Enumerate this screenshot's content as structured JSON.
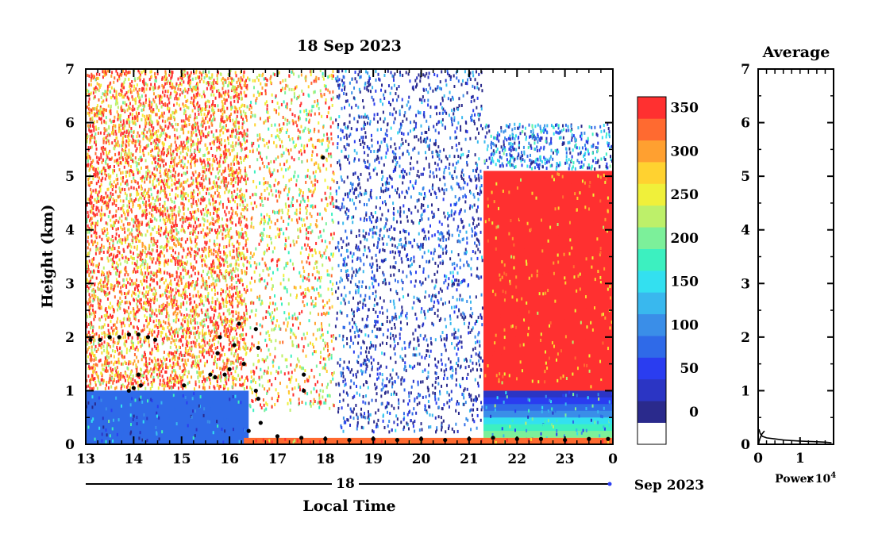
{
  "chart_data": [
    {
      "type": "heatmap",
      "title": "18 Sep 2023",
      "ylabel": "Height (km)",
      "xlabel": "Local Time",
      "date_axis": {
        "day_label": "18",
        "month_label": "Sep 2023"
      },
      "x_ticks": [
        "13",
        "14",
        "15",
        "16",
        "17",
        "18",
        "19",
        "20",
        "21",
        "22",
        "23",
        "0"
      ],
      "xlim": [
        13,
        24
      ],
      "y_ticks": [
        "0",
        "1",
        "2",
        "3",
        "4",
        "5",
        "6",
        "7"
      ],
      "ylim": [
        0,
        7
      ],
      "colorbar": {
        "tick_labels": [
          "0",
          "50",
          "100",
          "150",
          "200",
          "250",
          "300",
          "350"
        ],
        "range": [
          0,
          380
        ],
        "levels": [
          "#ffffff",
          "#2a2a8c",
          "#2b35c4",
          "#2a3df0",
          "#2f6ae8",
          "#3a8ee8",
          "#39b8ee",
          "#33e0f0",
          "#3cf0c0",
          "#7cf09a",
          "#bdf06a",
          "#f0f03a",
          "#ffd230",
          "#ffa030",
          "#ff6a30",
          "#ff3030"
        ]
      },
      "regions": [
        {
          "x": [
            13.0,
            16.4
          ],
          "y": [
            1.0,
            7.0
          ],
          "value": 340,
          "pattern": "dense speckle"
        },
        {
          "x": [
            13.0,
            16.4
          ],
          "y": [
            0.0,
            1.0
          ],
          "value": 110,
          "pattern": "dense"
        },
        {
          "x": [
            16.4,
            18.2
          ],
          "y": [
            0.6,
            7.0
          ],
          "value": 300,
          "pattern": "sparse speckle"
        },
        {
          "x": [
            18.2,
            21.3
          ],
          "y": [
            0.2,
            7.0
          ],
          "value": 60,
          "pattern": "sparse speckle"
        },
        {
          "x": [
            21.3,
            24.0
          ],
          "y": [
            1.0,
            5.1
          ],
          "value": 370,
          "pattern": "solid"
        },
        {
          "x": [
            21.3,
            24.0
          ],
          "y": [
            5.1,
            6.0
          ],
          "value": 110,
          "pattern": "speckle"
        },
        {
          "x": [
            21.3,
            24.0
          ],
          "y": [
            0.0,
            1.0
          ],
          "value": 150,
          "pattern": "gradient"
        },
        {
          "x": [
            16.3,
            24.0
          ],
          "y": [
            0.0,
            0.12
          ],
          "value": 360,
          "pattern": "solid"
        }
      ],
      "cloud_base_points": [
        [
          13.1,
          1.95
        ],
        [
          13.3,
          1.95
        ],
        [
          13.5,
          2.0
        ],
        [
          13.7,
          2.0
        ],
        [
          13.9,
          2.05
        ],
        [
          14.1,
          2.05
        ],
        [
          14.3,
          2.0
        ],
        [
          14.45,
          1.95
        ],
        [
          13.9,
          1.0
        ],
        [
          14.0,
          1.05
        ],
        [
          14.1,
          1.3
        ],
        [
          14.15,
          1.1
        ],
        [
          15.05,
          1.1
        ],
        [
          15.6,
          1.3
        ],
        [
          15.7,
          1.25
        ],
        [
          15.75,
          1.7
        ],
        [
          15.8,
          2.0
        ],
        [
          15.9,
          1.3
        ],
        [
          16.0,
          1.4
        ],
        [
          16.1,
          1.85
        ],
        [
          16.2,
          2.25
        ],
        [
          16.3,
          1.5
        ],
        [
          16.55,
          2.15
        ],
        [
          16.6,
          1.8
        ],
        [
          16.55,
          1.0
        ],
        [
          16.6,
          0.85
        ],
        [
          16.65,
          0.4
        ],
        [
          17.55,
          1.0
        ],
        [
          17.55,
          1.3
        ],
        [
          17.95,
          5.35
        ],
        [
          16.4,
          0.25
        ],
        [
          17.0,
          0.15
        ],
        [
          17.5,
          0.12
        ],
        [
          18.0,
          0.1
        ],
        [
          18.5,
          0.08
        ],
        [
          19.0,
          0.1
        ],
        [
          19.5,
          0.08
        ],
        [
          20.0,
          0.1
        ],
        [
          20.5,
          0.08
        ],
        [
          21.0,
          0.1
        ],
        [
          21.5,
          0.12
        ],
        [
          22.0,
          0.1
        ],
        [
          22.5,
          0.1
        ],
        [
          23.0,
          0.08
        ],
        [
          23.5,
          0.1
        ],
        [
          23.9,
          0.1
        ]
      ]
    },
    {
      "type": "line",
      "title": "Average",
      "xlabel": "Power",
      "x_exponent": "×10",
      "x_exponent_power": "4",
      "x_ticks": [
        "0",
        "1"
      ],
      "xlim": [
        0,
        1.8
      ],
      "y_ticks": [
        "0",
        "1",
        "2",
        "3",
        "4",
        "5",
        "6",
        "7"
      ],
      "ylim": [
        0,
        7
      ],
      "series": [
        {
          "x": [
            0.15,
            0.08,
            0.05,
            0.04,
            0.03,
            0.03,
            0.02,
            0.02,
            0.02,
            0.02,
            0.02
          ],
          "y": [
            0.25,
            0.18,
            0.12,
            0.1,
            0.08,
            0.07,
            0.06,
            0.05,
            0.04,
            0.03,
            0.02
          ]
        },
        {
          "x": [
            0.02,
            0.05,
            0.1,
            0.2,
            0.4,
            0.6,
            0.8,
            1.0,
            1.3,
            1.6,
            1.75
          ],
          "y": [
            0.28,
            0.2,
            0.15,
            0.12,
            0.1,
            0.08,
            0.07,
            0.06,
            0.05,
            0.04,
            0.03
          ]
        }
      ]
    }
  ]
}
